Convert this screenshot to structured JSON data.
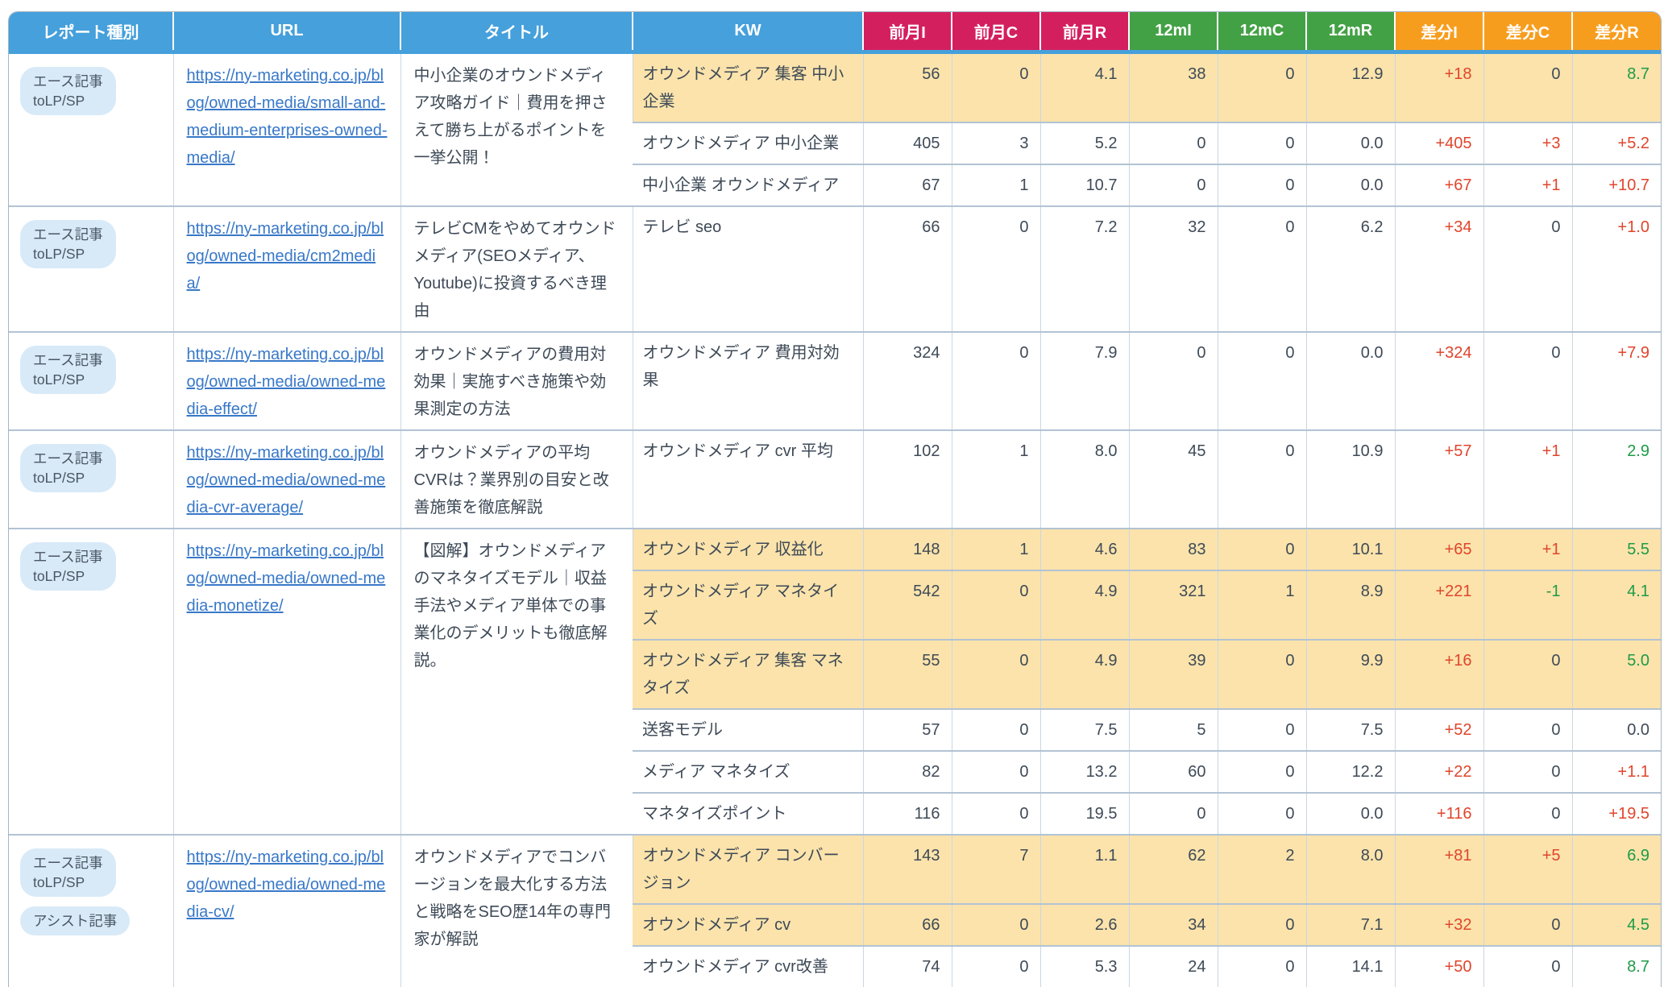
{
  "colors": {
    "header_blue": "#45a0db",
    "header_pink": "#d41f5f",
    "header_green": "#43a145",
    "header_orange": "#f79d1e",
    "row_highlight": "#fbe3ab",
    "diff_negative_red": "#e0452c",
    "diff_positive_green": "#1e9b47",
    "link_blue": "#3878c8"
  },
  "table": {
    "columns": [
      {
        "label": "レポート種別",
        "group": "meta"
      },
      {
        "label": "URL",
        "group": "meta"
      },
      {
        "label": "タイトル",
        "group": "meta"
      },
      {
        "label": "KW",
        "group": "meta"
      },
      {
        "label": "前月I",
        "group": "prev"
      },
      {
        "label": "前月C",
        "group": "prev"
      },
      {
        "label": "前月R",
        "group": "prev"
      },
      {
        "label": "12mI",
        "group": "12m"
      },
      {
        "label": "12mC",
        "group": "12m"
      },
      {
        "label": "12mR",
        "group": "12m"
      },
      {
        "label": "差分I",
        "group": "diff"
      },
      {
        "label": "差分C",
        "group": "diff"
      },
      {
        "label": "差分R",
        "group": "diff"
      }
    ],
    "groups": [
      {
        "badges": [
          "エース記事\ntoLP/SP"
        ],
        "url": "https://ny-marketing.co.jp/blog/owned-media/small-and-medium-enterprises-owned-media/",
        "title": "中小企業のオウンドメディア攻略ガイド｜費用を押さえて勝ち上がるポイントを一挙公開！",
        "rows": [
          {
            "kw": "オウンドメディア 集客 中小企業",
            "highlight": true,
            "values": [
              "56",
              "0",
              "4.1",
              "38",
              "0",
              "12.9"
            ],
            "diffs": [
              {
                "text": "+18",
                "color": "red"
              },
              {
                "text": "0",
                "color": "dark"
              },
              {
                "text": "8.7",
                "color": "green"
              }
            ]
          },
          {
            "kw": "オウンドメディア 中小企業",
            "highlight": false,
            "values": [
              "405",
              "3",
              "5.2",
              "0",
              "0",
              "0.0"
            ],
            "diffs": [
              {
                "text": "+405",
                "color": "red"
              },
              {
                "text": "+3",
                "color": "red"
              },
              {
                "text": "+5.2",
                "color": "red"
              }
            ]
          },
          {
            "kw": "中小企業 オウンドメディア",
            "highlight": false,
            "values": [
              "67",
              "1",
              "10.7",
              "0",
              "0",
              "0.0"
            ],
            "diffs": [
              {
                "text": "+67",
                "color": "red"
              },
              {
                "text": "+1",
                "color": "red"
              },
              {
                "text": "+10.7",
                "color": "red"
              }
            ]
          }
        ]
      },
      {
        "badges": [
          "エース記事\ntoLP/SP"
        ],
        "url": "https://ny-marketing.co.jp/blog/owned-media/cm2media/",
        "title": "テレビCMをやめてオウンドメディア(SEOメディア、Youtube)に投資するべき理由",
        "rows": [
          {
            "kw": "テレビ seo",
            "highlight": false,
            "values": [
              "66",
              "0",
              "7.2",
              "32",
              "0",
              "6.2"
            ],
            "diffs": [
              {
                "text": "+34",
                "color": "red"
              },
              {
                "text": "0",
                "color": "dark"
              },
              {
                "text": "+1.0",
                "color": "red"
              }
            ]
          }
        ]
      },
      {
        "badges": [
          "エース記事\ntoLP/SP"
        ],
        "url": "https://ny-marketing.co.jp/blog/owned-media/owned-media-effect/",
        "title": "オウンドメディアの費用対効果｜実施すべき施策や効果測定の方法",
        "rows": [
          {
            "kw": "オウンドメディア 費用対効果",
            "highlight": false,
            "values": [
              "324",
              "0",
              "7.9",
              "0",
              "0",
              "0.0"
            ],
            "diffs": [
              {
                "text": "+324",
                "color": "red"
              },
              {
                "text": "0",
                "color": "dark"
              },
              {
                "text": "+7.9",
                "color": "red"
              }
            ]
          }
        ]
      },
      {
        "badges": [
          "エース記事\ntoLP/SP"
        ],
        "url": "https://ny-marketing.co.jp/blog/owned-media/owned-media-cvr-average/",
        "title": "オウンドメディアの平均CVRは？業界別の目安と改善施策を徹底解説",
        "rows": [
          {
            "kw": "オウンドメディア cvr 平均",
            "highlight": false,
            "values": [
              "102",
              "1",
              "8.0",
              "45",
              "0",
              "10.9"
            ],
            "diffs": [
              {
                "text": "+57",
                "color": "red"
              },
              {
                "text": "+1",
                "color": "red"
              },
              {
                "text": "2.9",
                "color": "green"
              }
            ]
          }
        ]
      },
      {
        "badges": [
          "エース記事\ntoLP/SP"
        ],
        "url": "https://ny-marketing.co.jp/blog/owned-media/owned-media-monetize/",
        "title": "【図解】オウンドメディアのマネタイズモデル｜収益手法やメディア単体での事業化のデメリットも徹底解説。",
        "rows": [
          {
            "kw": "オウンドメディア 収益化",
            "highlight": true,
            "values": [
              "148",
              "1",
              "4.6",
              "83",
              "0",
              "10.1"
            ],
            "diffs": [
              {
                "text": "+65",
                "color": "red"
              },
              {
                "text": "+1",
                "color": "red"
              },
              {
                "text": "5.5",
                "color": "green"
              }
            ]
          },
          {
            "kw": "オウンドメディア マネタイズ",
            "highlight": true,
            "values": [
              "542",
              "0",
              "4.9",
              "321",
              "1",
              "8.9"
            ],
            "diffs": [
              {
                "text": "+221",
                "color": "red"
              },
              {
                "text": "-1",
                "color": "green"
              },
              {
                "text": "4.1",
                "color": "green"
              }
            ]
          },
          {
            "kw": "オウンドメディア 集客 マネタイズ",
            "highlight": true,
            "values": [
              "55",
              "0",
              "4.9",
              "39",
              "0",
              "9.9"
            ],
            "diffs": [
              {
                "text": "+16",
                "color": "red"
              },
              {
                "text": "0",
                "color": "dark"
              },
              {
                "text": "5.0",
                "color": "green"
              }
            ]
          },
          {
            "kw": "送客モデル",
            "highlight": false,
            "values": [
              "57",
              "0",
              "7.5",
              "5",
              "0",
              "7.5"
            ],
            "diffs": [
              {
                "text": "+52",
                "color": "red"
              },
              {
                "text": "0",
                "color": "dark"
              },
              {
                "text": "0.0",
                "color": "dark"
              }
            ]
          },
          {
            "kw": "メディア マネタイズ",
            "highlight": false,
            "values": [
              "82",
              "0",
              "13.2",
              "60",
              "0",
              "12.2"
            ],
            "diffs": [
              {
                "text": "+22",
                "color": "red"
              },
              {
                "text": "0",
                "color": "dark"
              },
              {
                "text": "+1.1",
                "color": "red"
              }
            ]
          },
          {
            "kw": "マネタイズポイント",
            "highlight": false,
            "values": [
              "116",
              "0",
              "19.5",
              "0",
              "0",
              "0.0"
            ],
            "diffs": [
              {
                "text": "+116",
                "color": "red"
              },
              {
                "text": "0",
                "color": "dark"
              },
              {
                "text": "+19.5",
                "color": "red"
              }
            ]
          }
        ]
      },
      {
        "badges": [
          "エース記事\ntoLP/SP",
          "アシスト記事"
        ],
        "url": "https://ny-marketing.co.jp/blog/owned-media/owned-media-cv/",
        "title": "オウンドメディアでコンバージョンを最大化する方法と戦略をSEO歴14年の専門家が解説",
        "rows": [
          {
            "kw": "オウンドメディア コンバージョン",
            "highlight": true,
            "values": [
              "143",
              "7",
              "1.1",
              "62",
              "2",
              "8.0"
            ],
            "diffs": [
              {
                "text": "+81",
                "color": "red"
              },
              {
                "text": "+5",
                "color": "red"
              },
              {
                "text": "6.9",
                "color": "green"
              }
            ]
          },
          {
            "kw": "オウンドメディア cv",
            "highlight": true,
            "values": [
              "66",
              "0",
              "2.6",
              "34",
              "0",
              "7.1"
            ],
            "diffs": [
              {
                "text": "+32",
                "color": "red"
              },
              {
                "text": "0",
                "color": "dark"
              },
              {
                "text": "4.5",
                "color": "green"
              }
            ]
          },
          {
            "kw": "オウンドメディア cvr改善",
            "highlight": false,
            "values": [
              "74",
              "0",
              "5.3",
              "24",
              "0",
              "14.1"
            ],
            "diffs": [
              {
                "text": "+50",
                "color": "red"
              },
              {
                "text": "0",
                "color": "dark"
              },
              {
                "text": "8.7",
                "color": "green"
              }
            ]
          }
        ]
      }
    ]
  }
}
